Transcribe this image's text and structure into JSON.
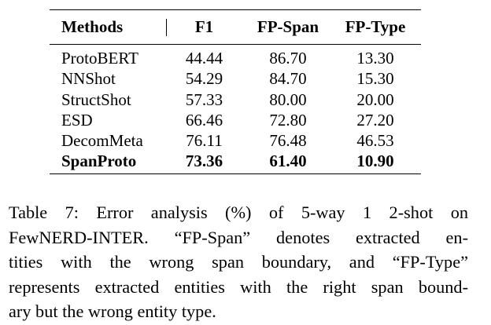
{
  "table": {
    "headers": {
      "methods": "Methods",
      "f1": "F1",
      "fp_span": "FP-Span",
      "fp_type": "FP-Type"
    },
    "rows": [
      {
        "method": "ProtoBERT",
        "f1": "44.44",
        "fp_span": "86.70",
        "fp_type": "13.30",
        "bold": false
      },
      {
        "method": "NNShot",
        "f1": "54.29",
        "fp_span": "84.70",
        "fp_type": "15.30",
        "bold": false
      },
      {
        "method": "StructShot",
        "f1": "57.33",
        "fp_span": "80.00",
        "fp_type": "20.00",
        "bold": false
      },
      {
        "method": "ESD",
        "f1": "66.46",
        "fp_span": "72.80",
        "fp_type": "27.20",
        "bold": false
      },
      {
        "method": "DecomMeta",
        "f1": "76.11",
        "fp_span": "76.48",
        "fp_type": "46.53",
        "bold": false
      },
      {
        "method": "SpanProto",
        "f1": "73.36",
        "fp_span": "61.40",
        "fp_type": "10.90",
        "bold": true
      }
    ]
  },
  "caption": {
    "lines": [
      "Table 7:  Error analysis (%) of 5-way 1 2-shot on",
      "FewNERD-INTER. “FP-Span” denotes extracted en-",
      "tities with the wrong span boundary, and “FP-Type”",
      "represents extracted entities with the right span bound-",
      "ary but the wrong entity type."
    ]
  }
}
